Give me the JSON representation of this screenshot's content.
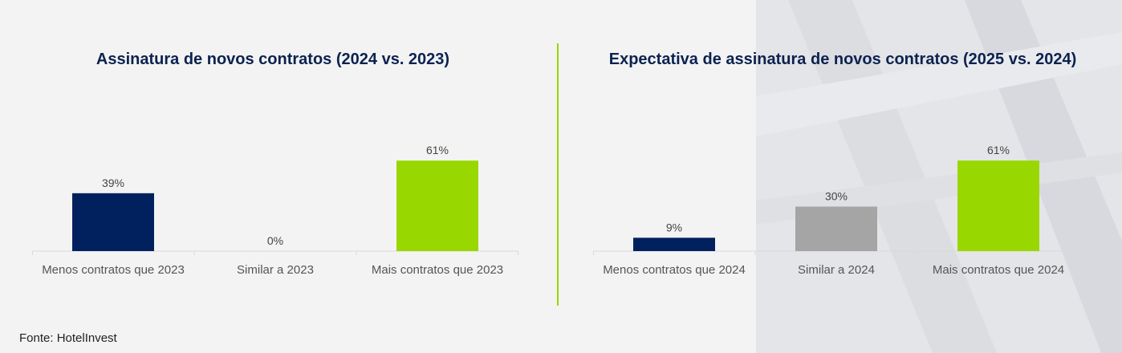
{
  "source_note": "Fonte: HotelInvest",
  "colors": {
    "navy": "#00215e",
    "gray": "#a5a5a5",
    "green": "#99d700",
    "divider": "#9bd400",
    "title": "#0b2250"
  },
  "chart_data": [
    {
      "type": "bar",
      "title": "Assinatura de novos contratos (2024 vs. 2023)",
      "categories": [
        "Menos contratos que 2023",
        "Similar a 2023",
        "Mais contratos que 2023"
      ],
      "values": [
        39,
        0,
        61
      ],
      "value_labels": [
        "39%",
        "0%",
        "61%"
      ],
      "bar_colors": [
        "#00215e",
        "#a5a5a5",
        "#99d700"
      ],
      "ylim": [
        0,
        100
      ],
      "xlabel": "",
      "ylabel": "",
      "grid": false
    },
    {
      "type": "bar",
      "title": "Expectativa de assinatura de novos contratos (2025 vs. 2024)",
      "categories": [
        "Menos contratos que 2024",
        "Similar a 2024",
        "Mais contratos que 2024"
      ],
      "values": [
        9,
        30,
        61
      ],
      "value_labels": [
        "9%",
        "30%",
        "61%"
      ],
      "bar_colors": [
        "#00215e",
        "#a5a5a5",
        "#99d700"
      ],
      "ylim": [
        0,
        100
      ],
      "xlabel": "",
      "ylabel": "",
      "grid": false
    }
  ]
}
